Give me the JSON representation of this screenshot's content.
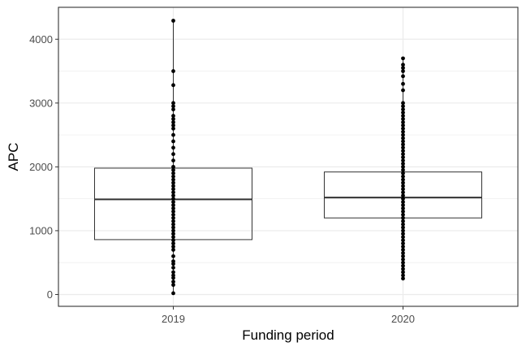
{
  "chart_data": {
    "type": "box",
    "xlabel": "Funding period",
    "ylabel": "APC",
    "ylim": [
      -185,
      4500
    ],
    "yticks": [
      0,
      1000,
      2000,
      3000,
      4000
    ],
    "grid": true,
    "categories": [
      "2019",
      "2020"
    ],
    "boxes": [
      {
        "category": "2019",
        "q1": 860,
        "median": 1490,
        "q3": 1980,
        "points": [
          20,
          150,
          200,
          260,
          300,
          350,
          420,
          480,
          520,
          600,
          700,
          750,
          800,
          850,
          900,
          950,
          1000,
          1050,
          1100,
          1150,
          1200,
          1250,
          1300,
          1350,
          1400,
          1450,
          1500,
          1550,
          1600,
          1650,
          1700,
          1750,
          1800,
          1850,
          1900,
          1950,
          2000,
          2100,
          2200,
          2300,
          2400,
          2500,
          2600,
          2650,
          2700,
          2750,
          2800,
          2900,
          2950,
          3000,
          3280,
          3500,
          4290
        ]
      },
      {
        "category": "2020",
        "q1": 1200,
        "median": 1520,
        "q3": 1920,
        "points": [
          250,
          300,
          350,
          400,
          450,
          500,
          550,
          600,
          650,
          700,
          750,
          800,
          850,
          900,
          950,
          1000,
          1050,
          1100,
          1150,
          1200,
          1250,
          1300,
          1350,
          1400,
          1450,
          1500,
          1550,
          1600,
          1650,
          1700,
          1750,
          1800,
          1850,
          1900,
          1950,
          2000,
          2050,
          2100,
          2150,
          2200,
          2250,
          2300,
          2350,
          2400,
          2450,
          2500,
          2550,
          2600,
          2650,
          2700,
          2750,
          2800,
          2850,
          2900,
          2950,
          3000,
          3200,
          3300,
          3420,
          3500,
          3550,
          3600,
          3700
        ]
      }
    ]
  },
  "colors": {
    "grid": "#ebebeb",
    "panel_border": "#333333",
    "box_line": "#333333",
    "point": "#000000"
  }
}
